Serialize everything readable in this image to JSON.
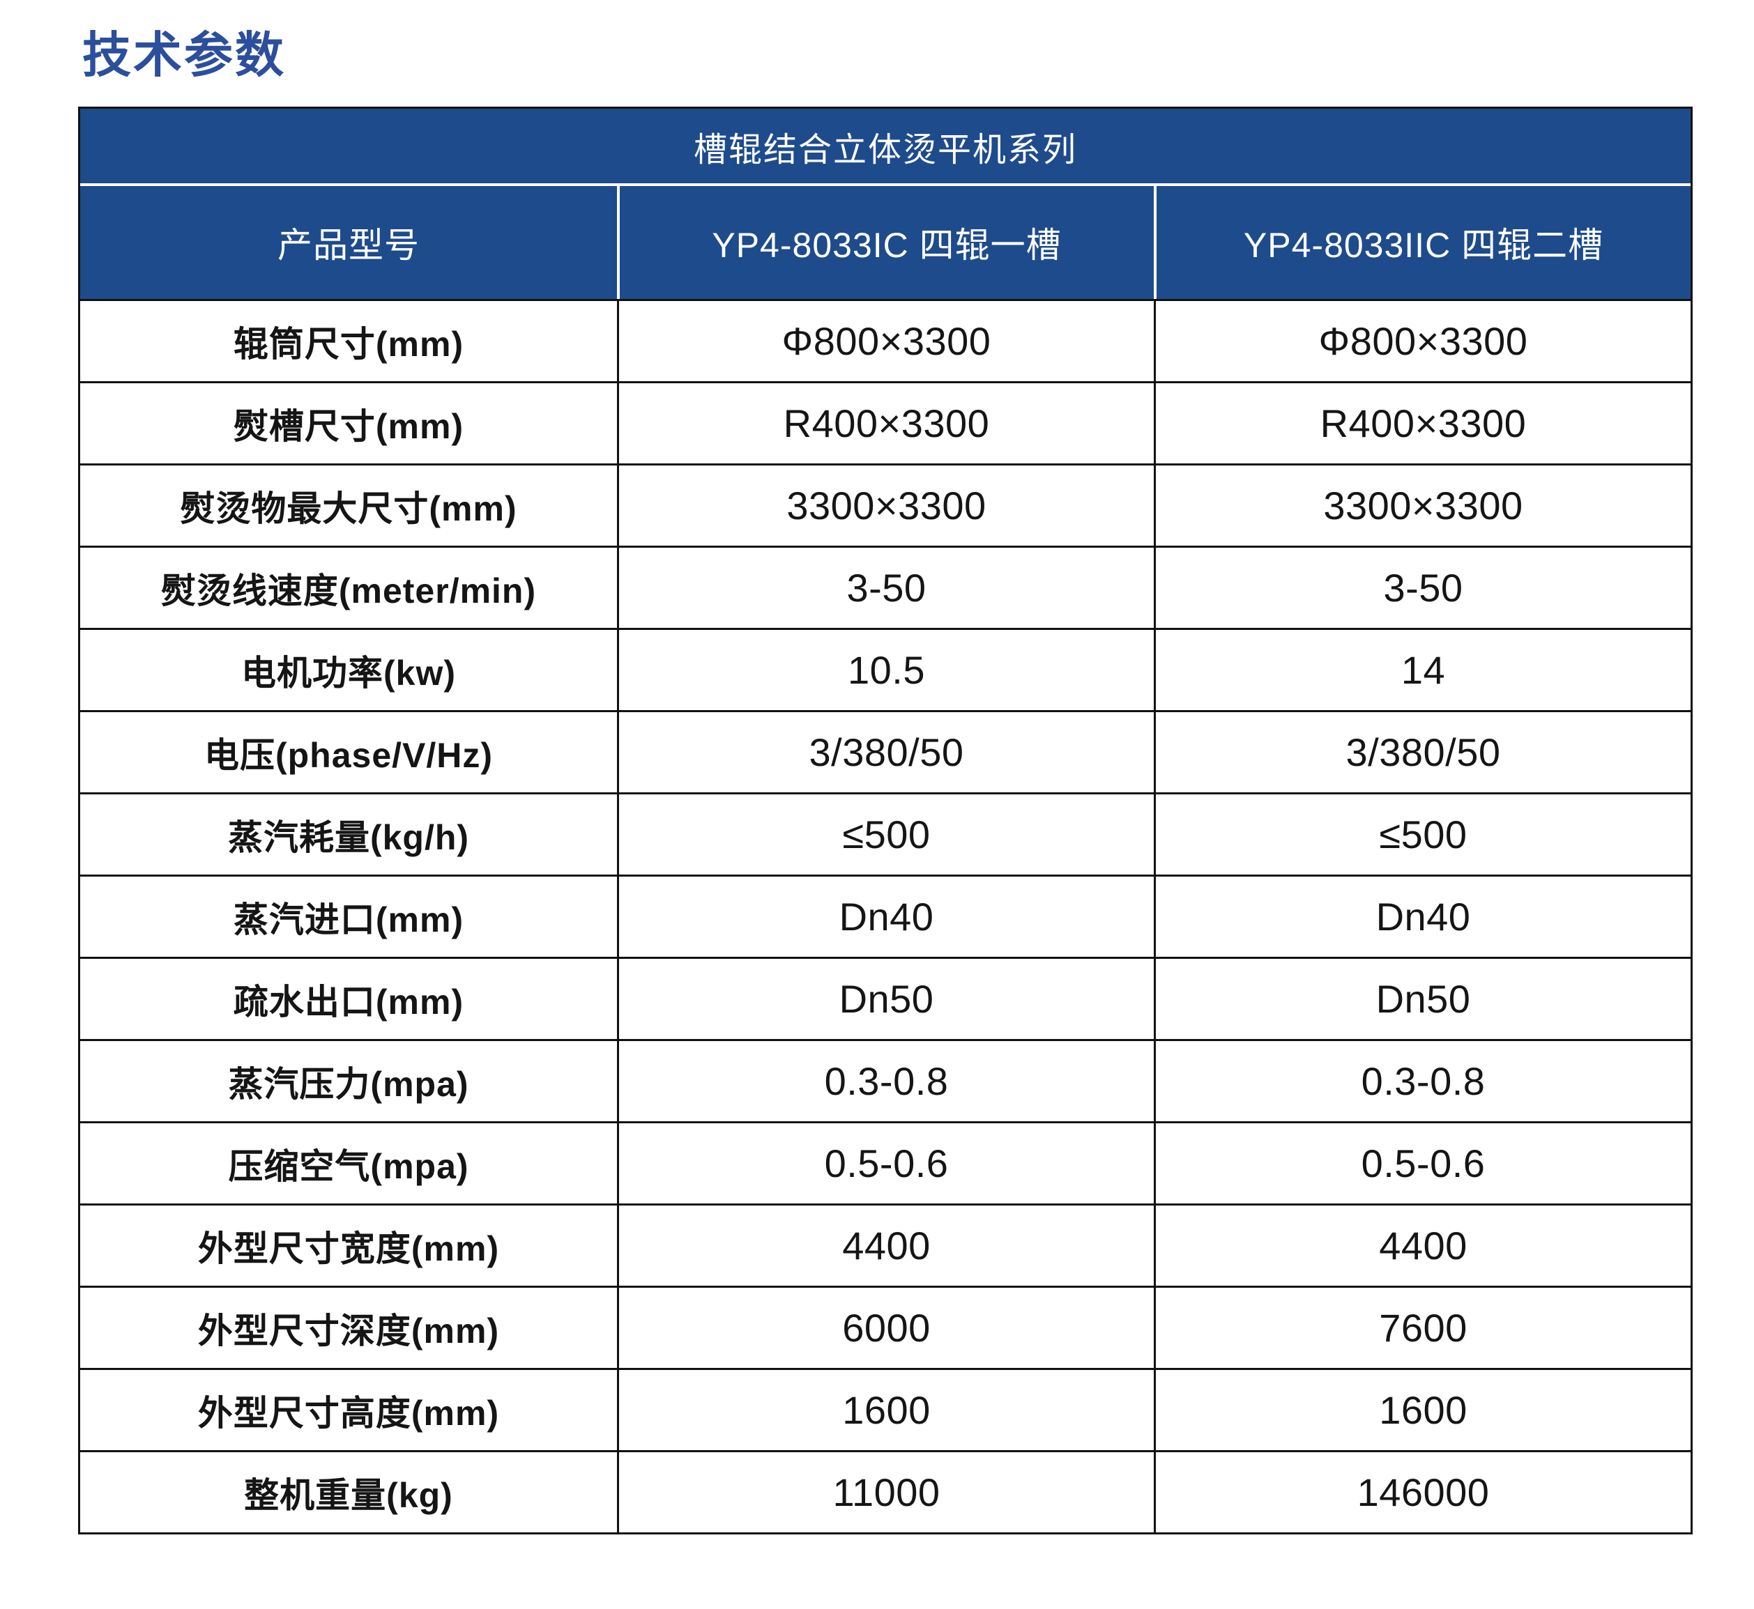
{
  "page": {
    "title": "技术参数"
  },
  "colors": {
    "title_blue": "#2b4f9c",
    "header_bg": "#1e4b8b",
    "header_text": "#ffffff",
    "body_text": "#151515",
    "border": "#121212"
  },
  "table": {
    "series_title": "槽辊结合立体烫平机系列",
    "columns": [
      "产品型号",
      "YP4-8033IC 四辊一槽",
      "YP4-8033IIC 四辊二槽"
    ],
    "rows": [
      {
        "label": "辊筒尺寸(mm)",
        "values": [
          "Φ800×3300",
          "Φ800×3300"
        ]
      },
      {
        "label": "熨槽尺寸(mm)",
        "values": [
          "R400×3300",
          "R400×3300"
        ]
      },
      {
        "label": "熨烫物最大尺寸(mm)",
        "values": [
          "3300×3300",
          "3300×3300"
        ]
      },
      {
        "label": "熨烫线速度(meter/min)",
        "values": [
          "3-50",
          "3-50"
        ]
      },
      {
        "label": "电机功率(kw)",
        "values": [
          "10.5",
          "14"
        ]
      },
      {
        "label": "电压(phase/V/Hz)",
        "values": [
          "3/380/50",
          "3/380/50"
        ]
      },
      {
        "label": "蒸汽耗量(kg/h)",
        "values": [
          "≤500",
          "≤500"
        ]
      },
      {
        "label": "蒸汽进口(mm)",
        "values": [
          "Dn40",
          "Dn40"
        ]
      },
      {
        "label": "疏水出口(mm)",
        "values": [
          "Dn50",
          "Dn50"
        ]
      },
      {
        "label": "蒸汽压力(mpa)",
        "values": [
          "0.3-0.8",
          "0.3-0.8"
        ]
      },
      {
        "label": "压缩空气(mpa)",
        "values": [
          "0.5-0.6",
          "0.5-0.6"
        ]
      },
      {
        "label": "外型尺寸宽度(mm)",
        "values": [
          "4400",
          "4400"
        ]
      },
      {
        "label": "外型尺寸深度(mm)",
        "values": [
          "6000",
          "7600"
        ]
      },
      {
        "label": "外型尺寸高度(mm)",
        "values": [
          "1600",
          "1600"
        ]
      },
      {
        "label": "整机重量(kg)",
        "values": [
          "11000",
          "146000"
        ]
      }
    ]
  }
}
